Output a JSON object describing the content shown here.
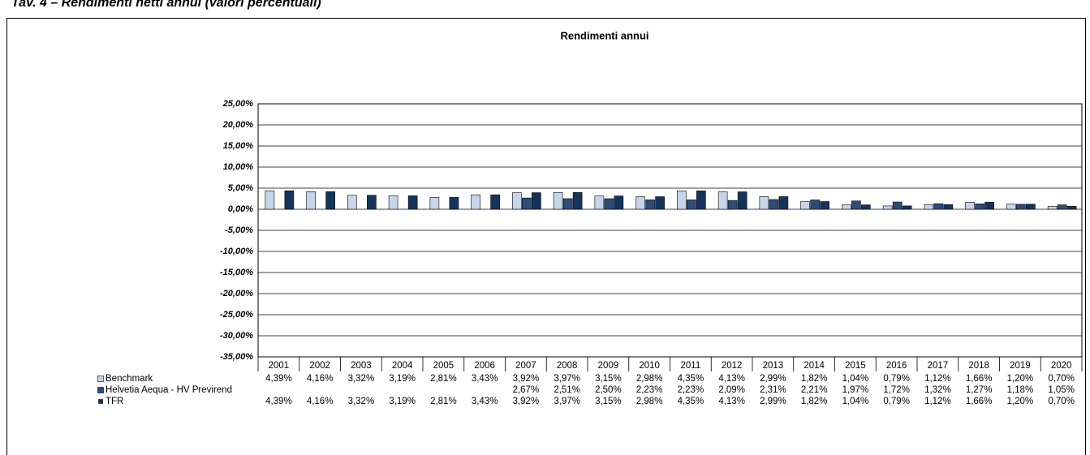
{
  "heading": "Tav. 4 – Rendimenti netti annui (valori percentuali)",
  "chart_data": {
    "type": "bar",
    "title": "Rendimenti annui",
    "categories": [
      "2001",
      "2002",
      "2003",
      "2004",
      "2005",
      "2006",
      "2007",
      "2008",
      "2009",
      "2010",
      "2011",
      "2012",
      "2013",
      "2014",
      "2015",
      "2016",
      "2017",
      "2018",
      "2019",
      "2020"
    ],
    "series": [
      {
        "name": "Benchmark",
        "color": "#c6d5ea",
        "values": [
          4.39,
          4.16,
          3.32,
          3.19,
          2.81,
          3.43,
          3.92,
          3.97,
          3.15,
          2.98,
          4.35,
          4.13,
          2.99,
          1.82,
          1.04,
          0.79,
          1.12,
          1.66,
          1.2,
          0.7
        ],
        "value_labels": [
          "4,39%",
          "4,16%",
          "3,32%",
          "3,19%",
          "2,81%",
          "3,43%",
          "3,92%",
          "3,97%",
          "3,15%",
          "2,98%",
          "4,35%",
          "4,13%",
          "2,99%",
          "1,82%",
          "1,04%",
          "0,79%",
          "1,12%",
          "1,66%",
          "1,20%",
          "0,70%"
        ]
      },
      {
        "name": "Helvetia Aequa - HV Previrend",
        "color": "#2c4d7a",
        "values": [
          null,
          null,
          null,
          null,
          null,
          null,
          2.67,
          2.51,
          2.5,
          2.23,
          2.23,
          2.09,
          2.31,
          2.21,
          1.97,
          1.72,
          1.32,
          1.27,
          1.18,
          1.05
        ],
        "value_labels": [
          null,
          null,
          null,
          null,
          null,
          null,
          "2,67%",
          "2,51%",
          "2,50%",
          "2,23%",
          "2,23%",
          "2,09%",
          "2,31%",
          "2,21%",
          "1,97%",
          "1,72%",
          "1,32%",
          "1,27%",
          "1,18%",
          "1,05%"
        ]
      },
      {
        "name": "TFR",
        "color": "#14345c",
        "values": [
          4.39,
          4.16,
          3.32,
          3.19,
          2.81,
          3.43,
          3.92,
          3.97,
          3.15,
          2.98,
          4.35,
          4.13,
          2.99,
          1.82,
          1.04,
          0.79,
          1.12,
          1.66,
          1.2,
          0.7
        ],
        "value_labels": [
          "4,39%",
          "4,16%",
          "3,32%",
          "3,19%",
          "2,81%",
          "3,43%",
          "3,92%",
          "3,97%",
          "3,15%",
          "2,98%",
          "4,35%",
          "4,13%",
          "2,99%",
          "1,82%",
          "1,04%",
          "0,79%",
          "1,12%",
          "1,66%",
          "1,20%",
          "0,70%"
        ]
      }
    ],
    "ylim": [
      -35,
      25
    ],
    "yticks": [
      {
        "value": 25,
        "label": "25,00%"
      },
      {
        "value": 20,
        "label": "20,00%"
      },
      {
        "value": 15,
        "label": "15,00%"
      },
      {
        "value": 10,
        "label": "10,00%"
      },
      {
        "value": 5,
        "label": "5,00%"
      },
      {
        "value": 0,
        "label": "0,00%"
      },
      {
        "value": -5,
        "label": "-5,00%"
      },
      {
        "value": -10,
        "label": "-10,00%"
      },
      {
        "value": -15,
        "label": "-15,00%"
      },
      {
        "value": -20,
        "label": "-20,00%"
      },
      {
        "value": -25,
        "label": "-25,00%"
      },
      {
        "value": -30,
        "label": "-30,00%"
      },
      {
        "value": -35,
        "label": "-35,00%"
      }
    ],
    "grid": true
  }
}
